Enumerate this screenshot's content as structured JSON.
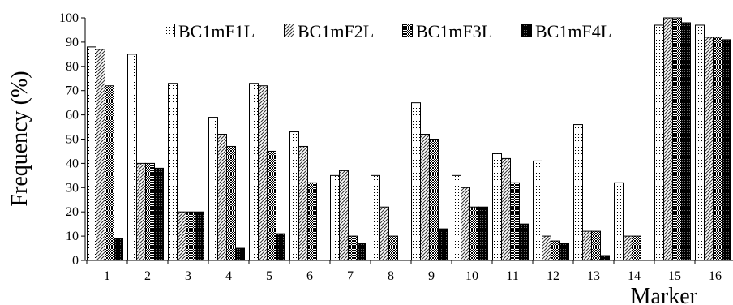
{
  "chart_data": {
    "type": "bar",
    "title": "",
    "xlabel": "Marker",
    "ylabel": "Frequency (%)",
    "ylim": [
      0,
      100
    ],
    "yticks": [
      0,
      10,
      20,
      30,
      40,
      50,
      60,
      70,
      80,
      90,
      100
    ],
    "grid": false,
    "legend_position": "top",
    "categories": [
      "1",
      "2",
      "3",
      "4",
      "5",
      "6",
      "7",
      "8",
      "9",
      "10",
      "11",
      "12",
      "13",
      "14",
      "15",
      "16"
    ],
    "series": [
      {
        "name": "BC1mF1L",
        "pattern": "dots",
        "values": [
          88,
          85,
          73,
          59,
          73,
          53,
          35,
          35,
          65,
          35,
          44,
          41,
          56,
          32,
          97,
          97
        ]
      },
      {
        "name": "BC1mF2L",
        "pattern": "diagonal",
        "values": [
          87,
          40,
          20,
          52,
          72,
          47,
          37,
          22,
          52,
          30,
          42,
          10,
          12,
          10,
          100,
          92
        ]
      },
      {
        "name": "BC1mF3L",
        "pattern": "crosshatch",
        "values": [
          72,
          40,
          20,
          47,
          45,
          32,
          10,
          10,
          50,
          22,
          32,
          8,
          12,
          10,
          100,
          92
        ]
      },
      {
        "name": "BC1mF4L",
        "pattern": "black",
        "values": [
          9,
          38,
          20,
          5,
          11,
          0,
          7,
          0,
          13,
          22,
          15,
          7,
          2,
          0,
          98,
          91
        ]
      }
    ]
  }
}
